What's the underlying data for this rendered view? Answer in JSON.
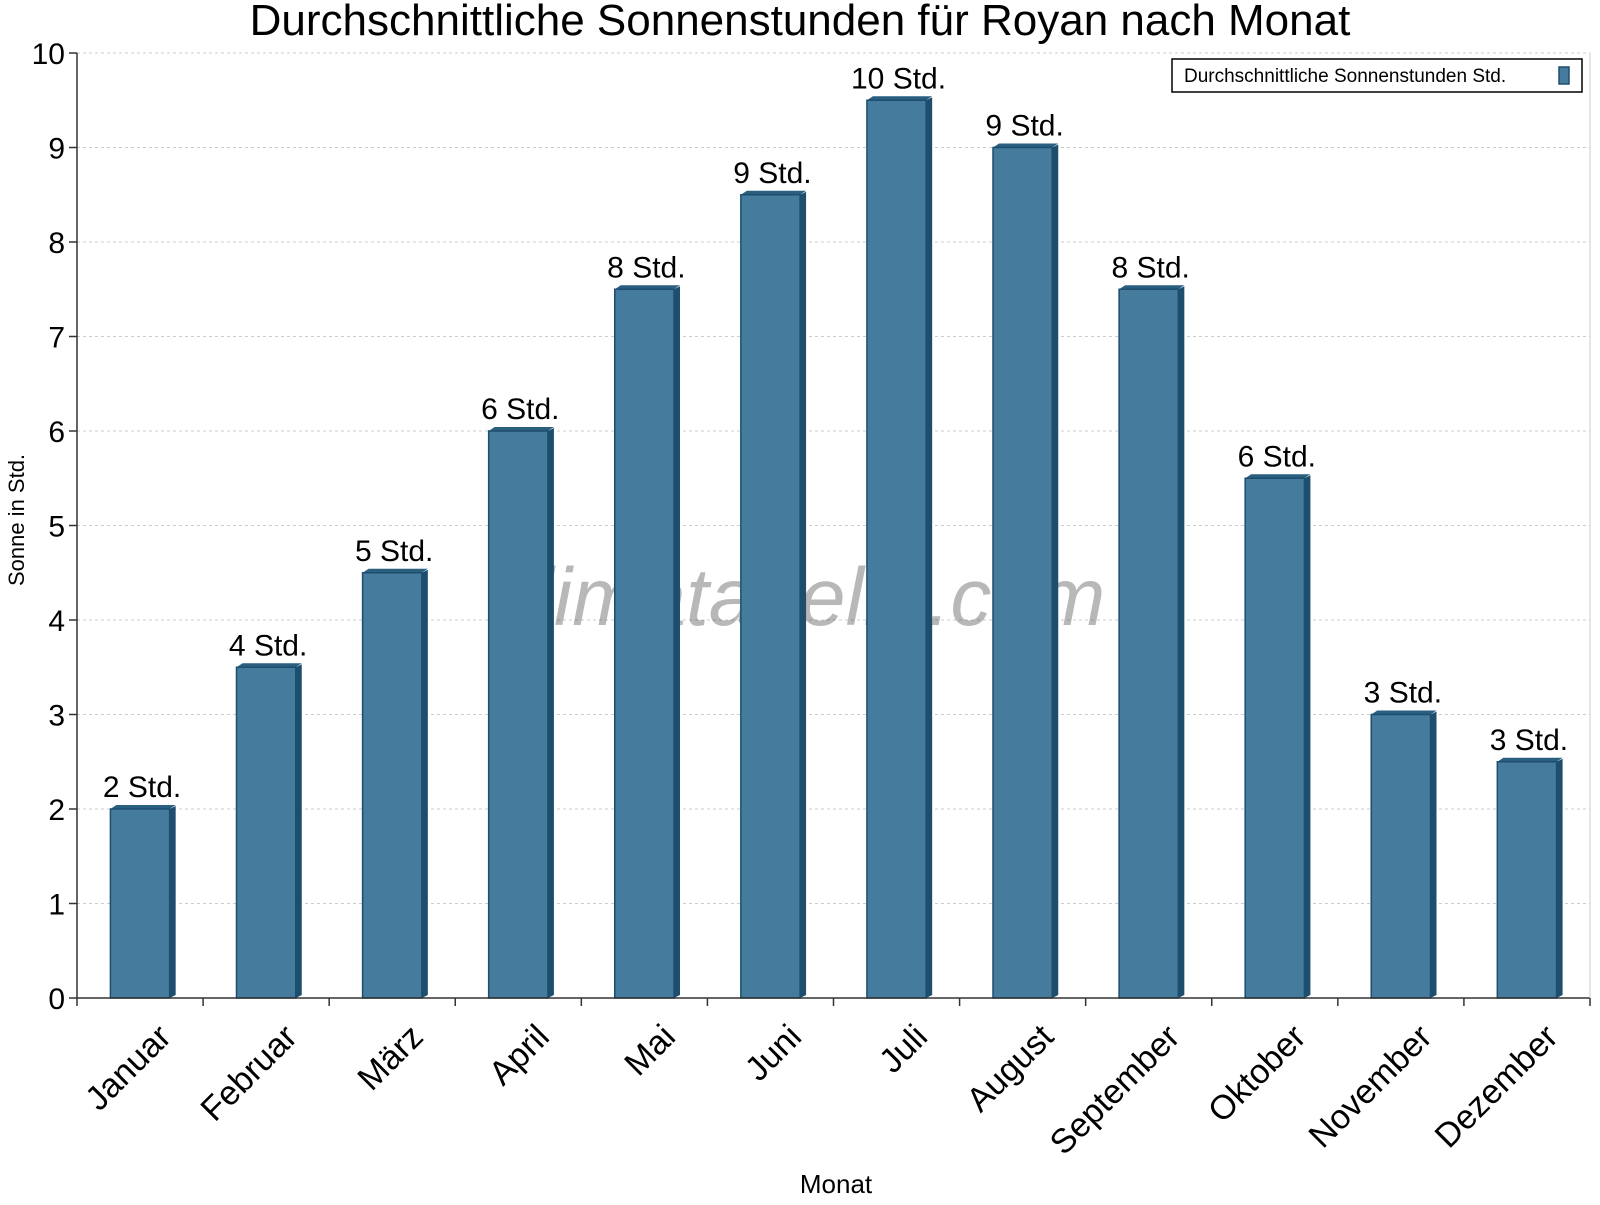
{
  "chart_data": {
    "type": "bar",
    "title": "Durchschnittliche Sonnenstunden für Royan nach Monat",
    "xlabel": "Monat",
    "ylabel": "Sonne in Std.",
    "categories": [
      "Januar",
      "Februar",
      "März",
      "April",
      "Mai",
      "Juni",
      "Juli",
      "August",
      "September",
      "Oktober",
      "November",
      "Dezember"
    ],
    "series": [
      {
        "name": "Durchschnittliche Sonnenstunden Std.",
        "values": [
          2,
          3.5,
          4.5,
          6,
          7.5,
          8.5,
          9.5,
          9,
          7.5,
          5.5,
          3,
          2.5
        ],
        "labels": [
          "2 Std.",
          "4 Std.",
          "5 Std.",
          "6 Std.",
          "8 Std.",
          "9 Std.",
          "10 Std.",
          "9 Std.",
          "8 Std.",
          "6 Std.",
          "3 Std.",
          "3 Std."
        ]
      }
    ],
    "ylim": [
      0,
      10
    ],
    "yticks": [
      0,
      1,
      2,
      3,
      4,
      5,
      6,
      7,
      8,
      9,
      10
    ],
    "grid": true,
    "legend_position": "top-right",
    "watermark": "klimatabelle.com",
    "colors": {
      "bar_front": "#457b9d",
      "bar_side": "#1d4e6e",
      "bar_top": "#2a5f80",
      "axis": "#333333",
      "grid": "#cccccc",
      "axis_title": "#555555"
    }
  }
}
